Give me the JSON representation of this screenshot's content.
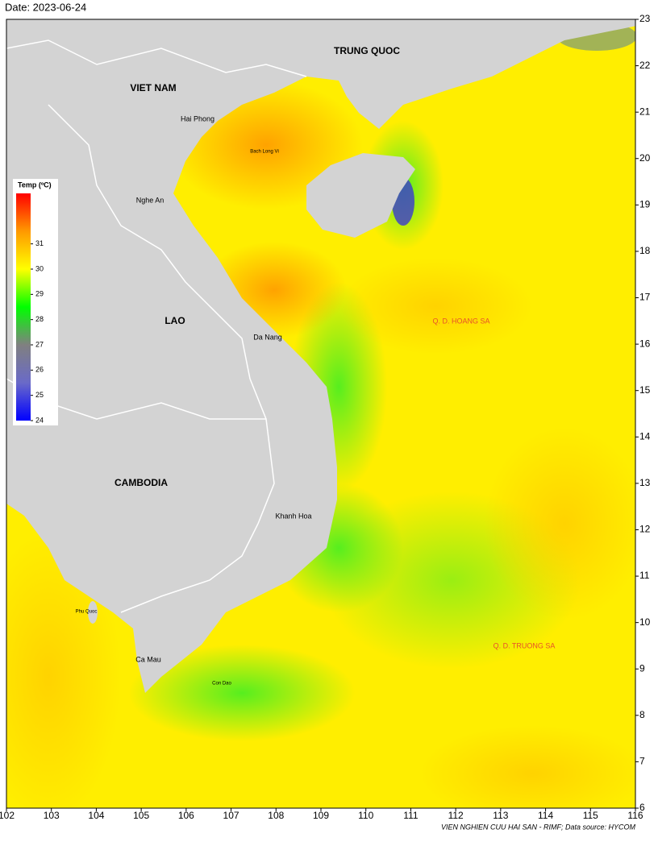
{
  "header": {
    "date": "Date: 2023-06-24"
  },
  "map": {
    "xlim": [
      102,
      116
    ],
    "ylim": [
      6,
      23
    ],
    "xticks": [
      102,
      103,
      104,
      105,
      106,
      107,
      108,
      109,
      110,
      111,
      112,
      113,
      114,
      115,
      116
    ],
    "yticks": [
      6,
      7,
      8,
      9,
      10,
      11,
      12,
      13,
      14,
      15,
      16,
      17,
      18,
      19,
      20,
      21,
      22,
      23
    ],
    "labels": [
      "VIET NAM",
      "TRUNG QUOC",
      "Hai Phong",
      "Bach Long Vi",
      "Nghe An",
      "LAO",
      "Da Nang",
      "CAMBODIA",
      "Khanh Hoa",
      "Phu Quoc",
      "Ca Mau",
      "Con Dao",
      "Q. D. HOANG SA",
      "Q. D. TRUONG SA"
    ]
  },
  "colorbar": {
    "title": "Temp (ºC)",
    "range": [
      24,
      33
    ],
    "ticks": [
      24,
      25,
      26,
      27,
      28,
      29,
      30,
      31
    ],
    "colors": [
      "#0000ff",
      "#6a6ac8",
      "#808080",
      "#00ff00",
      "#ffff00",
      "#ff9900",
      "#ff0000"
    ]
  },
  "footer": {
    "credit": "VIEN NGHIEN CUU HAI SAN - RIMF; Data source: HYCOM"
  }
}
